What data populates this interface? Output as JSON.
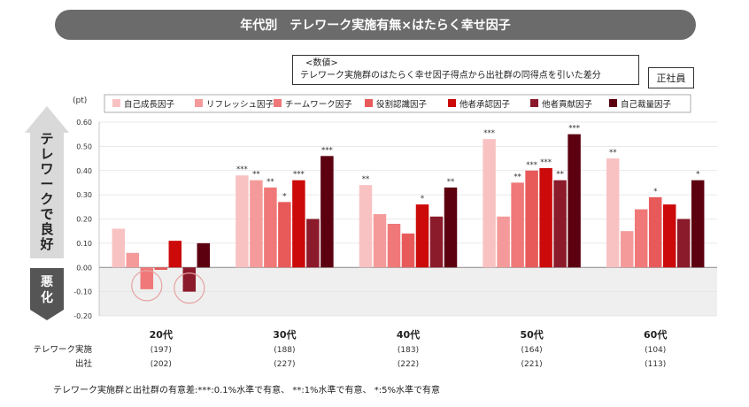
{
  "header": {
    "title": "年代別　テレワーク実施有無×はたらく幸せ因子"
  },
  "note": {
    "line1": "<数値>",
    "line2": "テレワーク実施群のはたらく幸せ因子得点から出社群の同得点を引いた差分"
  },
  "badge": "正社員",
  "side": {
    "positive": "テレワークで良好",
    "negative": "悪化"
  },
  "row_labels": {
    "telework": "テレワーク実施",
    "office": "出社"
  },
  "footnote": "テレワーク実施群と出社群の有意差:***:0.1%水準で有意、 **:1%水準で有意、 *:5%水準で有意",
  "colors": {
    "series": [
      "#f9c2c2",
      "#f59a9a",
      "#f07878",
      "#e85a5a",
      "#cc0a0a",
      "#8b1a2a",
      "#5c0010"
    ],
    "circle": "#e6a3a3",
    "negative_bg": "#efefef",
    "side_arrow": "#d9d9d9",
    "side_neg": "#555555"
  },
  "chart_data": {
    "type": "bar",
    "unit": "(pt)",
    "ylim": [
      -0.2,
      0.6
    ],
    "yticks": [
      "0.60",
      "0.50",
      "0.40",
      "0.30",
      "0.20",
      "0.10",
      "0.00",
      "-0.10",
      "-0.20"
    ],
    "ytick_values": [
      0.6,
      0.5,
      0.4,
      0.3,
      0.2,
      0.1,
      0.0,
      -0.1,
      -0.2
    ],
    "legend_position": "top",
    "categories": [
      "20代",
      "30代",
      "40代",
      "50代",
      "60代"
    ],
    "n_telework": [
      "(197)",
      "(188)",
      "(183)",
      "(164)",
      "(104)"
    ],
    "n_office": [
      "(202)",
      "(227)",
      "(222)",
      "(221)",
      "(113)"
    ],
    "series": [
      {
        "name": "自己成長因子",
        "values": [
          0.16,
          0.38,
          0.34,
          0.53,
          0.45
        ],
        "sig": [
          "",
          "***",
          "**",
          "***",
          "**"
        ]
      },
      {
        "name": "リフレッシュ因子",
        "values": [
          0.06,
          0.36,
          0.22,
          0.21,
          0.15
        ],
        "sig": [
          "",
          "**",
          "",
          "",
          ""
        ]
      },
      {
        "name": "チームワーク因子",
        "values": [
          -0.09,
          0.33,
          0.18,
          0.35,
          0.24
        ],
        "sig": [
          "",
          "**",
          "",
          "**",
          ""
        ]
      },
      {
        "name": "役割認識因子",
        "values": [
          -0.01,
          0.27,
          0.14,
          0.4,
          0.29
        ],
        "sig": [
          "",
          "*",
          "",
          "***",
          "*"
        ]
      },
      {
        "name": "他者承認因子",
        "values": [
          0.11,
          0.36,
          0.26,
          0.41,
          0.26
        ],
        "sig": [
          "",
          "***",
          "*",
          "***",
          ""
        ]
      },
      {
        "name": "他者貢献因子",
        "values": [
          -0.1,
          0.2,
          0.21,
          0.36,
          0.2
        ],
        "sig": [
          "",
          "",
          "",
          "**",
          ""
        ]
      },
      {
        "name": "自己裁量因子",
        "values": [
          0.1,
          0.46,
          0.33,
          0.55,
          0.36
        ],
        "sig": [
          "",
          "***",
          "**",
          "***",
          "*"
        ]
      }
    ],
    "highlight_circles": [
      {
        "category": 0,
        "series": 2
      },
      {
        "category": 0,
        "series": 5
      }
    ]
  }
}
